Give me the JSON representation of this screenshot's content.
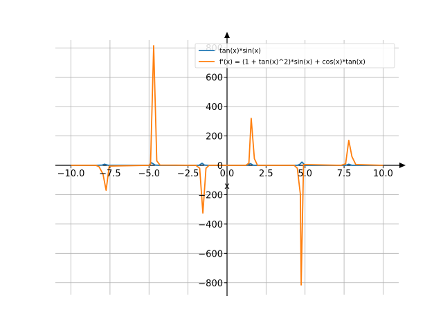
{
  "chart_data": {
    "type": "line",
    "xlabel": "x",
    "ylabel": "",
    "xlim": [
      -11,
      11
    ],
    "ylim": [
      -900,
      900
    ],
    "grid": true,
    "legend_placement": "top-right",
    "x_ticks": [
      -10,
      -7.5,
      -5,
      -2.5,
      0,
      2.5,
      5,
      7.5,
      10
    ],
    "x_tick_labels": [
      "−10.0",
      "−7.5",
      "−5.0",
      "−2.5",
      "0.0",
      "2.5",
      "5.0",
      "7.5",
      "10.0"
    ],
    "y_ticks": [
      -800,
      -600,
      -400,
      -200,
      0,
      200,
      400,
      600,
      800
    ],
    "y_tick_labels": [
      "−800",
      "−600",
      "−400",
      "−200",
      "0",
      "200",
      "400",
      "600",
      "800"
    ],
    "series": [
      {
        "name": "tan(x)*sin(x)",
        "color": "#1f77b4",
        "x": [
          -10,
          -8.4,
          -8.0,
          -7.85,
          -7.6,
          -5.0,
          -4.85,
          -4.6,
          -4.3,
          -1.8,
          -1.6,
          -1.45,
          -1.2,
          1.3,
          1.5,
          1.7,
          4.5,
          4.65,
          4.8,
          5.0,
          7.6,
          7.8,
          8.0,
          10
        ],
        "values": [
          0,
          0,
          2,
          8,
          0,
          0,
          18,
          2,
          0,
          0,
          14,
          2,
          0,
          0,
          12,
          0,
          0,
          6,
          22,
          0,
          0,
          8,
          0,
          0
        ]
      },
      {
        "name": "f'(x) = (1 + tan(x)^2)*sin(x) + cos(x)*tan(x)",
        "color": "#ff7f0e",
        "x": [
          -10,
          -8.4,
          -8.2,
          -7.95,
          -7.75,
          -7.55,
          -5.0,
          -4.9,
          -4.7,
          -4.5,
          -4.3,
          -2.0,
          -1.75,
          -1.55,
          -1.35,
          -1.15,
          1.2,
          1.4,
          1.55,
          1.75,
          1.95,
          4.3,
          4.5,
          4.7,
          4.75,
          4.9,
          7.3,
          7.6,
          7.8,
          8.0,
          8.25,
          10
        ],
        "values": [
          0,
          0,
          -10,
          -60,
          -170,
          -5,
          0,
          10,
          815,
          30,
          2,
          0,
          -20,
          -325,
          -20,
          0,
          0,
          15,
          320,
          45,
          0,
          0,
          -20,
          -200,
          -815,
          5,
          0,
          10,
          170,
          60,
          5,
          0
        ]
      }
    ]
  }
}
